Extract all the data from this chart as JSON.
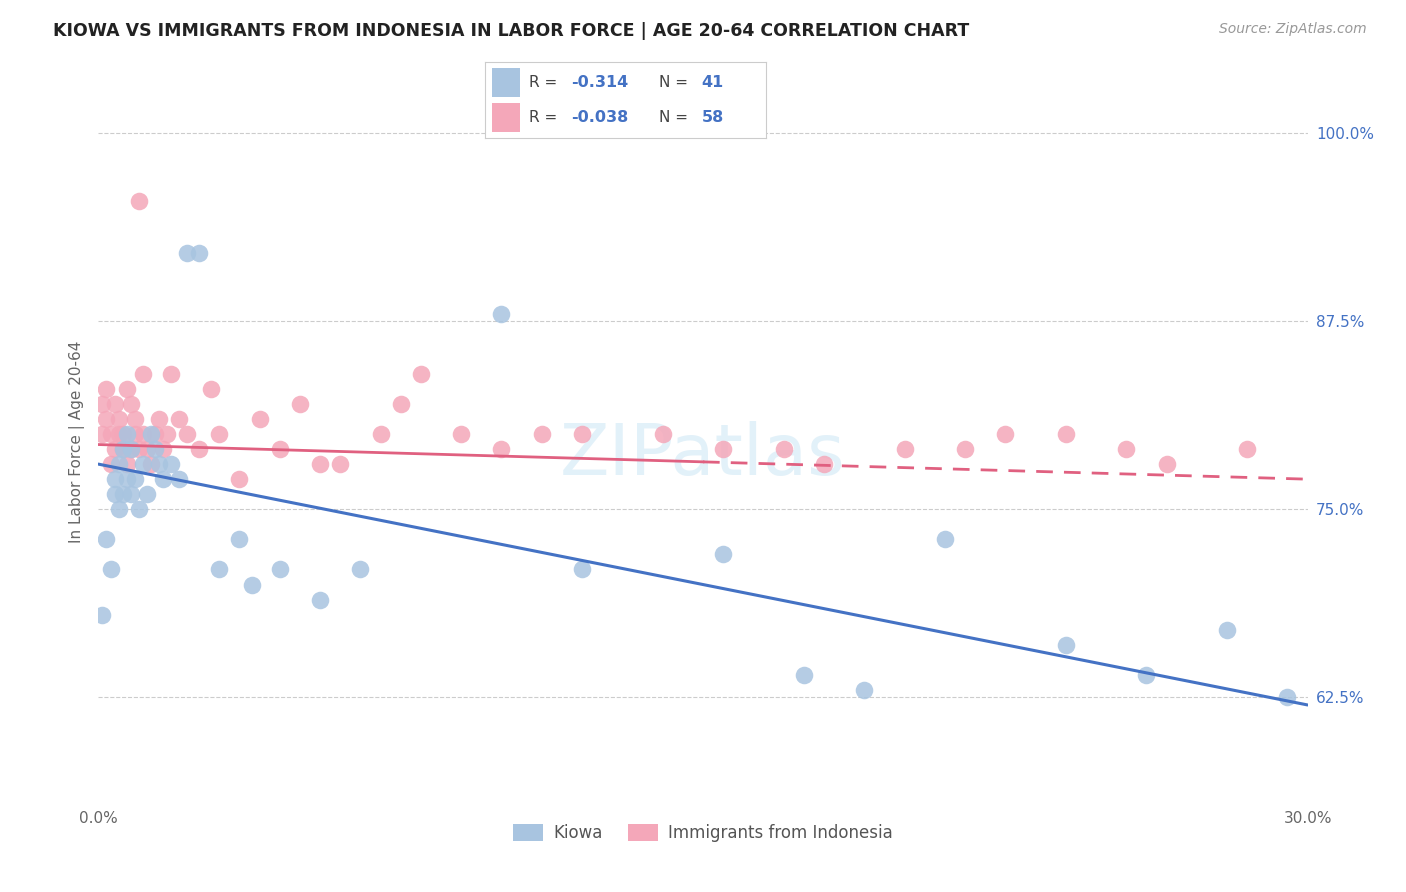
{
  "title": "KIOWA VS IMMIGRANTS FROM INDONESIA IN LABOR FORCE | AGE 20-64 CORRELATION CHART",
  "source": "Source: ZipAtlas.com",
  "ylabel": "In Labor Force | Age 20-64",
  "xlim": [
    0.0,
    0.3
  ],
  "ylim": [
    0.555,
    1.035
  ],
  "yticks": [
    0.625,
    0.75,
    0.875,
    1.0
  ],
  "yticklabels": [
    "62.5%",
    "75.0%",
    "87.5%",
    "100.0%"
  ],
  "kiowa_R": "-0.314",
  "kiowa_N": "41",
  "indonesia_R": "-0.038",
  "indonesia_N": "58",
  "kiowa_color": "#a8c4e0",
  "indonesia_color": "#f4a7b9",
  "kiowa_line_color": "#4472c4",
  "indonesia_line_color": "#e06080",
  "background_color": "#ffffff",
  "grid_color": "#cccccc",
  "kiowa_line_x0": 0.0,
  "kiowa_line_y0": 0.78,
  "kiowa_line_x1": 0.3,
  "kiowa_line_y1": 0.62,
  "indonesia_line_x0": 0.0,
  "indonesia_line_y0": 0.793,
  "indonesia_line_x1": 0.3,
  "indonesia_line_y1": 0.77,
  "kiowa_x": [
    0.001,
    0.002,
    0.003,
    0.004,
    0.004,
    0.005,
    0.005,
    0.006,
    0.006,
    0.007,
    0.007,
    0.008,
    0.008,
    0.009,
    0.01,
    0.011,
    0.012,
    0.013,
    0.014,
    0.015,
    0.016,
    0.018,
    0.02,
    0.022,
    0.025,
    0.03,
    0.035,
    0.038,
    0.045,
    0.055,
    0.065,
    0.1,
    0.12,
    0.155,
    0.175,
    0.19,
    0.21,
    0.24,
    0.26,
    0.28,
    0.295
  ],
  "kiowa_y": [
    0.68,
    0.73,
    0.71,
    0.76,
    0.77,
    0.78,
    0.75,
    0.79,
    0.76,
    0.77,
    0.8,
    0.79,
    0.76,
    0.77,
    0.75,
    0.78,
    0.76,
    0.8,
    0.79,
    0.78,
    0.77,
    0.78,
    0.77,
    0.92,
    0.92,
    0.71,
    0.73,
    0.7,
    0.71,
    0.69,
    0.71,
    0.88,
    0.71,
    0.72,
    0.64,
    0.63,
    0.73,
    0.66,
    0.64,
    0.67,
    0.625
  ],
  "indonesia_x": [
    0.001,
    0.001,
    0.002,
    0.002,
    0.003,
    0.003,
    0.004,
    0.004,
    0.005,
    0.005,
    0.006,
    0.006,
    0.007,
    0.007,
    0.008,
    0.008,
    0.009,
    0.009,
    0.01,
    0.01,
    0.011,
    0.011,
    0.012,
    0.013,
    0.014,
    0.015,
    0.016,
    0.017,
    0.018,
    0.02,
    0.022,
    0.025,
    0.028,
    0.03,
    0.035,
    0.04,
    0.045,
    0.05,
    0.055,
    0.06,
    0.07,
    0.075,
    0.08,
    0.09,
    0.1,
    0.11,
    0.12,
    0.14,
    0.155,
    0.17,
    0.18,
    0.2,
    0.215,
    0.225,
    0.24,
    0.255,
    0.265,
    0.285
  ],
  "indonesia_y": [
    0.8,
    0.82,
    0.81,
    0.83,
    0.8,
    0.78,
    0.79,
    0.82,
    0.8,
    0.81,
    0.79,
    0.8,
    0.78,
    0.83,
    0.79,
    0.82,
    0.8,
    0.81,
    0.955,
    0.79,
    0.84,
    0.8,
    0.79,
    0.78,
    0.8,
    0.81,
    0.79,
    0.8,
    0.84,
    0.81,
    0.8,
    0.79,
    0.83,
    0.8,
    0.77,
    0.81,
    0.79,
    0.82,
    0.78,
    0.78,
    0.8,
    0.82,
    0.84,
    0.8,
    0.79,
    0.8,
    0.8,
    0.8,
    0.79,
    0.79,
    0.78,
    0.79,
    0.79,
    0.8,
    0.8,
    0.79,
    0.78,
    0.79
  ]
}
